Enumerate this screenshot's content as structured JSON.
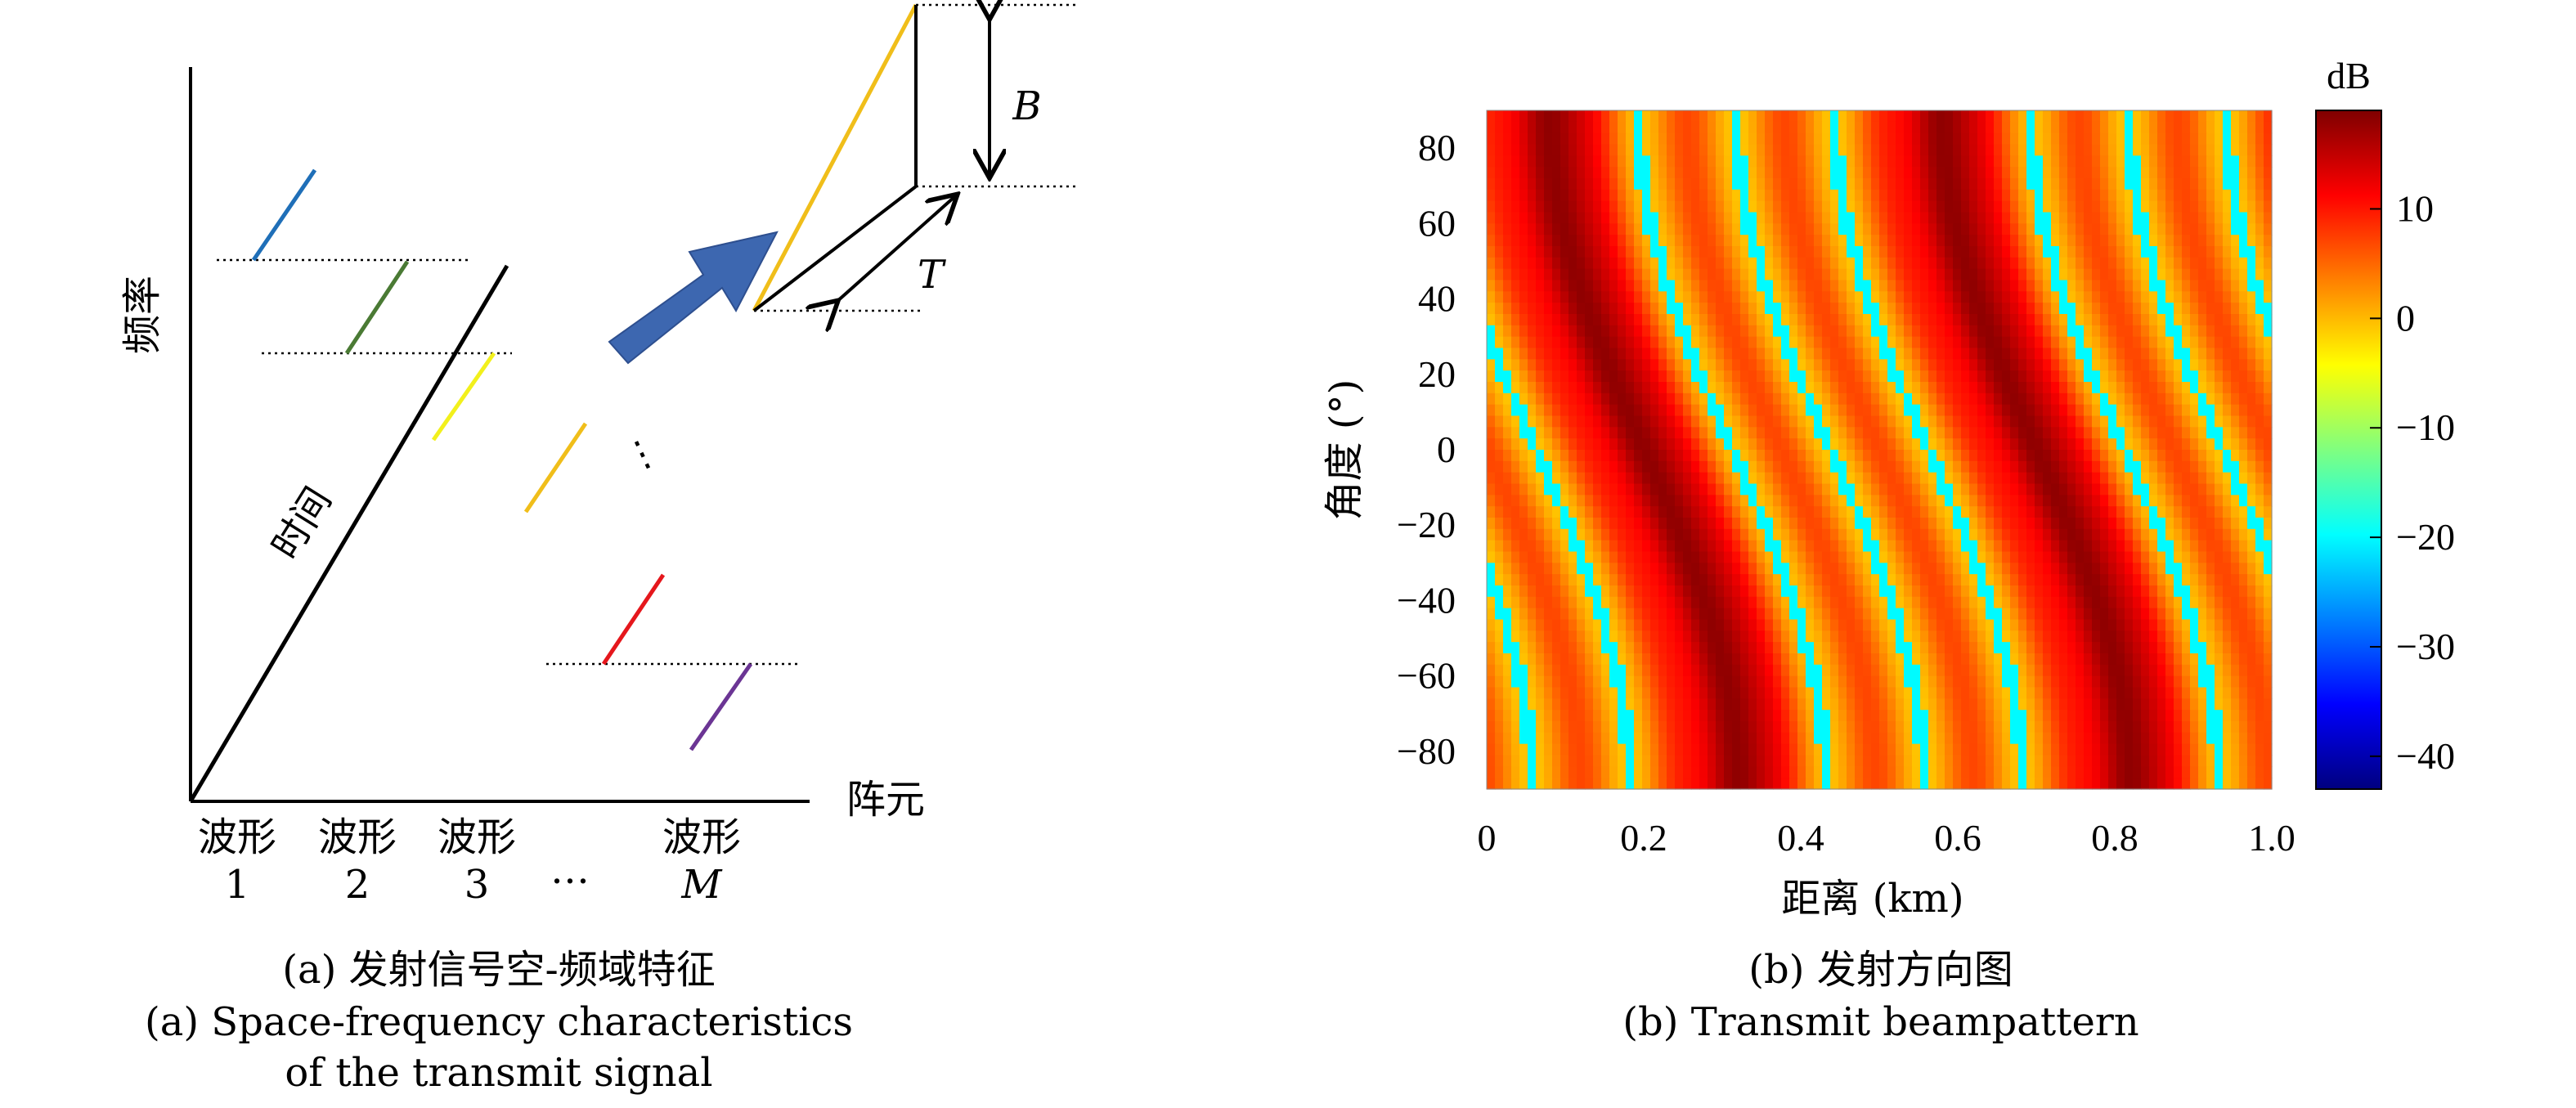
{
  "panel_a": {
    "axes": {
      "y_label": "频率",
      "x_label": "阵元",
      "diag_label": "时间"
    },
    "waveforms": [
      {
        "label": "波形",
        "index": "1"
      },
      {
        "label": "波形",
        "index": "2"
      },
      {
        "label": "波形",
        "index": "3"
      },
      {
        "label": "",
        "index": "…"
      },
      {
        "label": "波形",
        "index": "M"
      }
    ],
    "segments_colors": [
      "#1f6fb8",
      "#4a7a34",
      "#f2f01c",
      "#f0be1a",
      "#e5171c",
      "#6b3594"
    ],
    "vdots": "⋮",
    "inset": {
      "bandwidth": "B",
      "duration": "T",
      "arrow_color": "#3d67b0",
      "chirp_color": "#f0be1a"
    },
    "caption_zh": "(a) 发射信号空-频域特征",
    "caption_en_1": "(a) Space-frequency characteristics",
    "caption_en_2": "of the transmit signal"
  },
  "chart_data": [
    {
      "type": "heatmap",
      "title": "",
      "xlabel": "距离 (km)",
      "ylabel": "角度 (°)",
      "xlim": [
        0,
        1.0
      ],
      "ylim": [
        -90,
        90
      ],
      "x_ticks": [
        "0",
        "0.2",
        "0.4",
        "0.6",
        "0.8",
        "1.0"
      ],
      "y_ticks": [
        "80",
        "60",
        "40",
        "20",
        "0",
        "−20",
        "−40",
        "−60",
        "−80"
      ],
      "colorbar": {
        "unit": "dB",
        "range": [
          -43,
          19
        ],
        "ticks": [
          "10",
          "0",
          "−10",
          "−20",
          "−30",
          "−40"
        ],
        "colormap": "jet"
      },
      "pattern": {
        "description_values": "two high-gain (~18 dB) sinusoidal ridges sweeping from upper-left to lower-right; background ~0 dB with periodic nulls",
        "ridge_centers_km_at_0deg": [
          0.2,
          0.7
        ],
        "ridge_period_km": 0.5,
        "peak_db": 18,
        "background_db": 3,
        "null_db": -20
      },
      "caption_zh": "(b) 发射方向图",
      "caption_en": "(b) Transmit beampattern"
    }
  ]
}
